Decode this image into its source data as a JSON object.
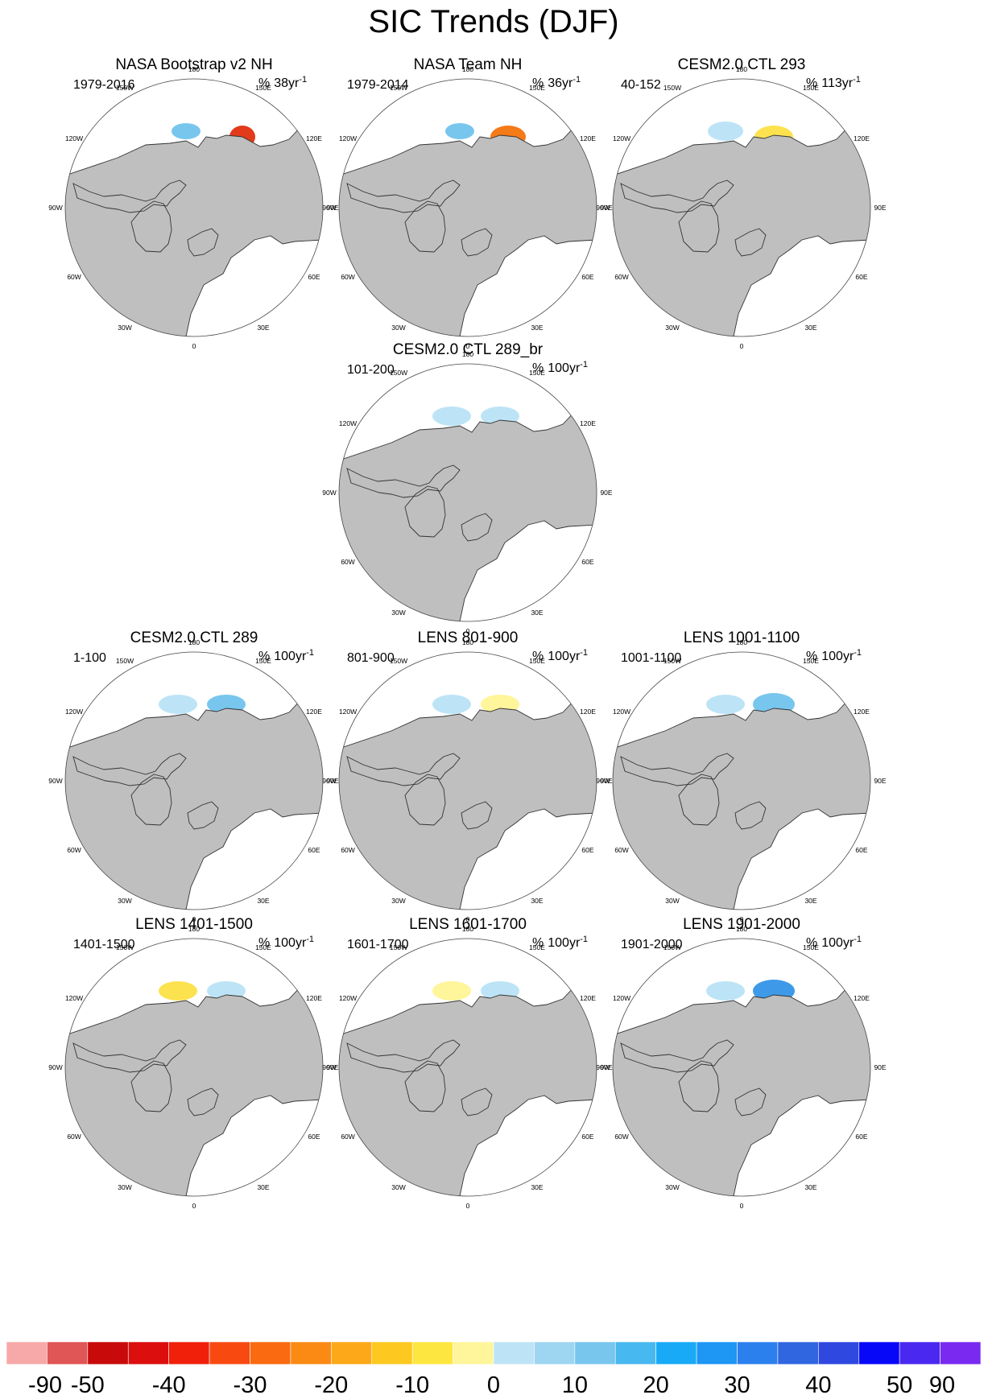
{
  "title": "SIC Trends (DJF)",
  "units_prefix": "%",
  "units_suffix": "yr",
  "units_exponent": "-1",
  "longitude_labels": [
    "180",
    "150E",
    "120E",
    "90E",
    "60E",
    "30E",
    "0",
    "30W",
    "60W",
    "90W",
    "120W",
    "150W"
  ],
  "panels": [
    {
      "title": "NASA Bootstrap v2 NH",
      "period": "1979-2016",
      "scale": "38",
      "pattern": "obs1"
    },
    {
      "title": "NASA Team NH",
      "period": "1979-2014",
      "scale": "36",
      "pattern": "obs2"
    },
    {
      "title": "CESM2.0 CTL 293",
      "period": "40-152",
      "scale": "113",
      "pattern": "ctl293"
    },
    {
      "title": "CESM2.0 CTL 289_br",
      "period": "101-200",
      "scale": "100",
      "pattern": "br"
    },
    {
      "title": "CESM2.0 CTL 289",
      "period": "1-100",
      "scale": "100",
      "pattern": "c289"
    },
    {
      "title": "LENS 801-900",
      "period": "801-900",
      "scale": "100",
      "pattern": "l801"
    },
    {
      "title": "LENS 1001-1100",
      "period": "1001-1100",
      "scale": "100",
      "pattern": "l1001"
    },
    {
      "title": "LENS 1401-1500",
      "period": "1401-1500",
      "scale": "100",
      "pattern": "l1401"
    },
    {
      "title": "LENS 1601-1700",
      "period": "1601-1700",
      "scale": "100",
      "pattern": "l1601"
    },
    {
      "title": "LENS 1901-2000",
      "period": "1901-2000",
      "scale": "100",
      "pattern": "l1901"
    }
  ],
  "colorbar": {
    "colors": [
      "#f7a8a8",
      "#e05555",
      "#c80a0a",
      "#dc0e0e",
      "#f0200a",
      "#f84a10",
      "#fa6a10",
      "#fb8a14",
      "#fca818",
      "#fdc820",
      "#fee640",
      "#fff59a",
      "#bde4f6",
      "#9ed6f2",
      "#78c6ee",
      "#48b8f0",
      "#18aaf6",
      "#1e96f4",
      "#2c80ee",
      "#3066e0",
      "#2e48e0",
      "#0808f8",
      "#4a28f0",
      "#7a2af0"
    ],
    "labels": [
      "-90",
      "-50",
      "-40",
      "-30",
      "-20",
      "-10",
      "0",
      "10",
      "20",
      "30",
      "40",
      "50",
      "90"
    ]
  },
  "palette": {
    "land": "#bfbfbf",
    "ocean": "#ffffff",
    "coast": "#333333",
    "red_dark": "#c80a0a",
    "red": "#e23a1a",
    "orange": "#f57a18",
    "yellow": "#fde250",
    "yellow_light": "#fff59a",
    "blue_light": "#bde4f6",
    "blue": "#78c6ee",
    "blue_mid": "#3e9ae8",
    "blue_dark": "#2c6ee0"
  }
}
